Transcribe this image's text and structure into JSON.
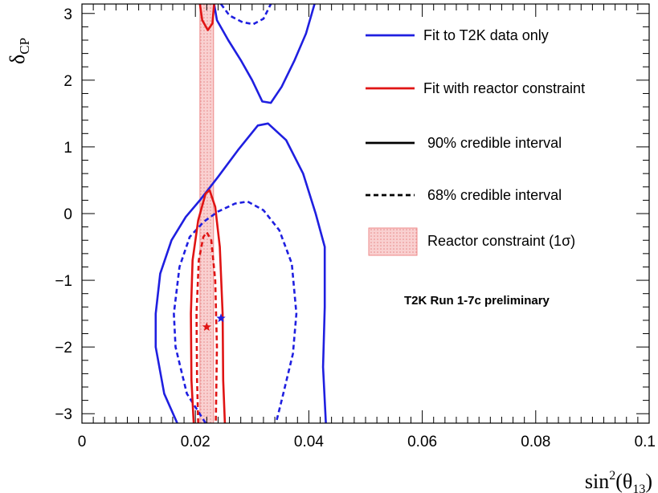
{
  "chart_data": {
    "type": "contour",
    "title": "",
    "xlabel": {
      "main": "sin",
      "sup": "2",
      "open": "(θ",
      "sub": "13",
      "close": ")"
    },
    "ylabel": {
      "main": "δ",
      "sub": "CP"
    },
    "xlim": [
      0,
      0.1
    ],
    "ylim": [
      -3.1416,
      3.1416
    ],
    "x_ticks": [
      {
        "value": 0,
        "label": "0"
      },
      {
        "value": 0.02,
        "label": "0.02"
      },
      {
        "value": 0.04,
        "label": "0.04"
      },
      {
        "value": 0.06,
        "label": "0.06"
      },
      {
        "value": 0.08,
        "label": "0.08"
      },
      {
        "value": 0.1,
        "label": "0.1"
      }
    ],
    "y_ticks": [
      {
        "value": -3,
        "label": "−3"
      },
      {
        "value": -2,
        "label": "−2"
      },
      {
        "value": -1,
        "label": "−1"
      },
      {
        "value": 0,
        "label": "0"
      },
      {
        "value": 1,
        "label": "1"
      },
      {
        "value": 2,
        "label": "2"
      },
      {
        "value": 3,
        "label": "3"
      }
    ],
    "colors": {
      "t2k": "#1f1fe0",
      "reactor": "#e01414",
      "band_fill": "#f7c2c2",
      "band_edge": "#ee8a8a",
      "axes": "#000000"
    },
    "reactor_band": {
      "x_min": 0.0208,
      "x_max": 0.0232,
      "label": "Reactor constraint (1σ)"
    },
    "series": [
      {
        "name": "T2K 90% upper branch",
        "group": "t2k",
        "level": "90%",
        "points": [
          [
            0.0233,
            3.1416
          ],
          [
            0.0238,
            2.9
          ],
          [
            0.0258,
            2.6
          ],
          [
            0.028,
            2.3
          ],
          [
            0.03,
            2.0
          ],
          [
            0.0318,
            1.68
          ],
          [
            0.0333,
            1.66
          ],
          [
            0.0352,
            1.9
          ],
          [
            0.0375,
            2.3
          ],
          [
            0.0395,
            2.7
          ],
          [
            0.041,
            3.1416
          ]
        ]
      },
      {
        "name": "T2K 90% lower region",
        "group": "t2k",
        "level": "90%",
        "points": [
          [
            0.0168,
            -3.1416
          ],
          [
            0.0145,
            -2.7
          ],
          [
            0.013,
            -2.0
          ],
          [
            0.013,
            -1.5
          ],
          [
            0.0138,
            -0.9
          ],
          [
            0.0158,
            -0.4
          ],
          [
            0.0183,
            -0.05
          ],
          [
            0.0208,
            0.2
          ],
          [
            0.024,
            0.55
          ],
          [
            0.0275,
            0.95
          ],
          [
            0.031,
            1.32
          ],
          [
            0.0328,
            1.35
          ],
          [
            0.036,
            1.1
          ],
          [
            0.039,
            0.6
          ],
          [
            0.0412,
            0.0
          ],
          [
            0.0428,
            -0.5
          ],
          [
            0.0428,
            -1.4
          ],
          [
            0.0425,
            -2.3
          ],
          [
            0.043,
            -3.1416
          ]
        ]
      },
      {
        "name": "T2K 68% upper",
        "group": "t2k",
        "level": "68%",
        "points": [
          [
            0.0245,
            3.1416
          ],
          [
            0.026,
            2.97
          ],
          [
            0.0283,
            2.87
          ],
          [
            0.0302,
            2.84
          ],
          [
            0.032,
            2.92
          ],
          [
            0.0333,
            3.1416
          ]
        ]
      },
      {
        "name": "T2K 68% lower",
        "group": "t2k",
        "level": "68%",
        "points": [
          [
            0.0218,
            -3.1416
          ],
          [
            0.0185,
            -2.7
          ],
          [
            0.0165,
            -2.0
          ],
          [
            0.0162,
            -1.5
          ],
          [
            0.0172,
            -0.8
          ],
          [
            0.019,
            -0.35
          ],
          [
            0.0215,
            -0.12
          ],
          [
            0.024,
            0.03
          ],
          [
            0.027,
            0.15
          ],
          [
            0.0292,
            0.18
          ],
          [
            0.032,
            0.05
          ],
          [
            0.0348,
            -0.25
          ],
          [
            0.037,
            -0.75
          ],
          [
            0.0378,
            -1.5
          ],
          [
            0.0372,
            -2.1
          ],
          [
            0.0355,
            -2.7
          ],
          [
            0.0342,
            -3.1416
          ]
        ]
      },
      {
        "name": "Reactor 90% upper",
        "group": "reactor",
        "level": "90%",
        "points": [
          [
            0.0208,
            3.1416
          ],
          [
            0.0212,
            2.9
          ],
          [
            0.0222,
            2.75
          ],
          [
            0.023,
            2.85
          ],
          [
            0.0233,
            3.1416
          ]
        ]
      },
      {
        "name": "Reactor 90% lower",
        "group": "reactor",
        "level": "90%",
        "points": [
          [
            0.0197,
            -3.1416
          ],
          [
            0.0193,
            -2.5
          ],
          [
            0.0192,
            -1.5
          ],
          [
            0.0195,
            -0.7
          ],
          [
            0.0205,
            -0.1
          ],
          [
            0.0218,
            0.3
          ],
          [
            0.0225,
            0.35
          ],
          [
            0.0235,
            0.1
          ],
          [
            0.0243,
            -0.5
          ],
          [
            0.0248,
            -1.5
          ],
          [
            0.0249,
            -2.5
          ],
          [
            0.0252,
            -3.1416
          ]
        ]
      },
      {
        "name": "Reactor 68% lower",
        "group": "reactor",
        "level": "68%",
        "points": [
          [
            0.0205,
            -3.1416
          ],
          [
            0.0203,
            -2.5
          ],
          [
            0.0202,
            -1.5
          ],
          [
            0.0206,
            -0.7
          ],
          [
            0.0214,
            -0.35
          ],
          [
            0.022,
            -0.28
          ],
          [
            0.0228,
            -0.4
          ],
          [
            0.0235,
            -1.0
          ],
          [
            0.0238,
            -2.0
          ],
          [
            0.0236,
            -3.1416
          ]
        ]
      }
    ],
    "best_fit_points": [
      {
        "name": "T2K best fit",
        "group": "t2k",
        "x": 0.0245,
        "y": -1.57
      },
      {
        "name": "Reactor best fit",
        "group": "reactor",
        "x": 0.022,
        "y": -1.7
      }
    ],
    "legend": {
      "position": "top-right",
      "entries": [
        {
          "kind": "line",
          "color_key": "t2k",
          "style": "solid",
          "label": "Fit to T2K data only"
        },
        {
          "kind": "line",
          "color_key": "reactor",
          "style": "solid",
          "label": "Fit with reactor constraint"
        },
        {
          "kind": "line",
          "color_key": "axes",
          "style": "solid",
          "label": "90% credible interval"
        },
        {
          "kind": "line",
          "color_key": "axes",
          "style": "dashed",
          "label": "68% credible interval"
        },
        {
          "kind": "box",
          "color_key": "band_fill",
          "style": "hatched",
          "label": "Reactor constraint (1σ)"
        }
      ]
    },
    "annotation": "T2K Run 1-7c preliminary"
  }
}
